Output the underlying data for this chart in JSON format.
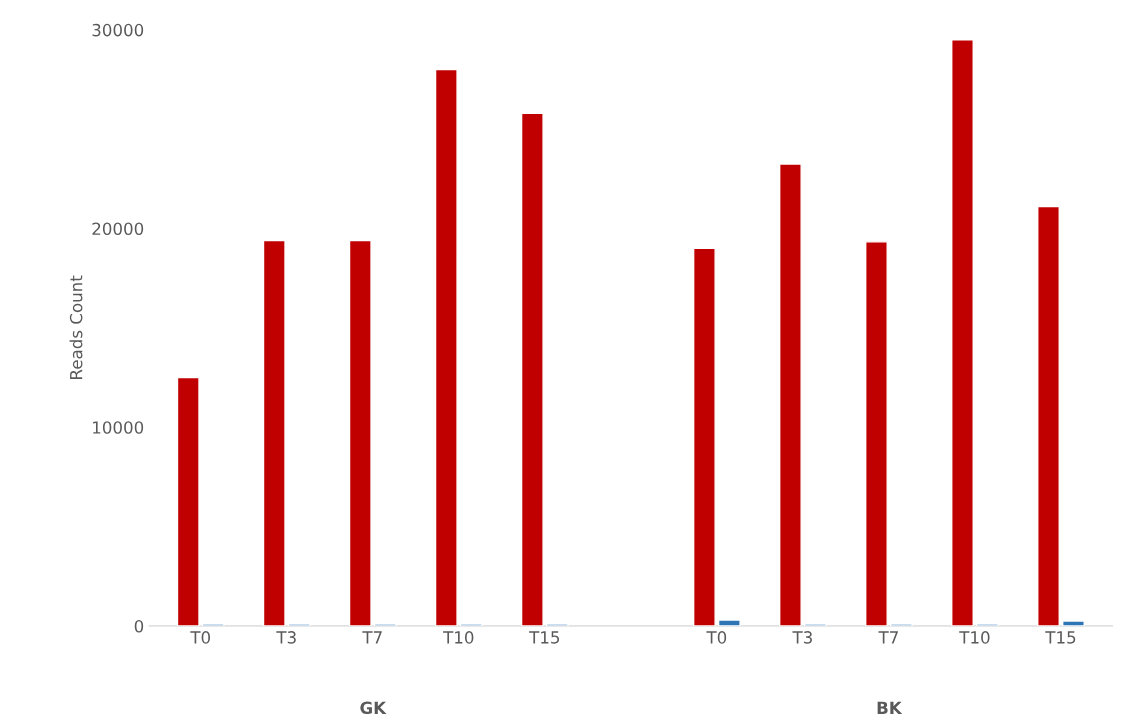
{
  "chart_data": {
    "type": "bar",
    "ylabel": "Reads Count",
    "categories": [
      "T0",
      "T3",
      "T7",
      "T10",
      "T15",
      null,
      "T0",
      "T3",
      "T7",
      "T10",
      "T15"
    ],
    "series": [
      {
        "color": "#c00000",
        "values": [
          12500,
          19400,
          19400,
          28000,
          25800,
          null,
          19000,
          23250,
          19330,
          29500,
          21100
        ]
      },
      {
        "color": "#2e75b6",
        "values": [
          100,
          100,
          100,
          100,
          100,
          null,
          300,
          100,
          100,
          100,
          250
        ]
      }
    ],
    "ylim": [
      0,
      30000
    ],
    "yticks": [
      0,
      10000,
      20000,
      30000
    ],
    "grid": false,
    "legend": false,
    "annotations": [
      "GK",
      "BK"
    ]
  }
}
